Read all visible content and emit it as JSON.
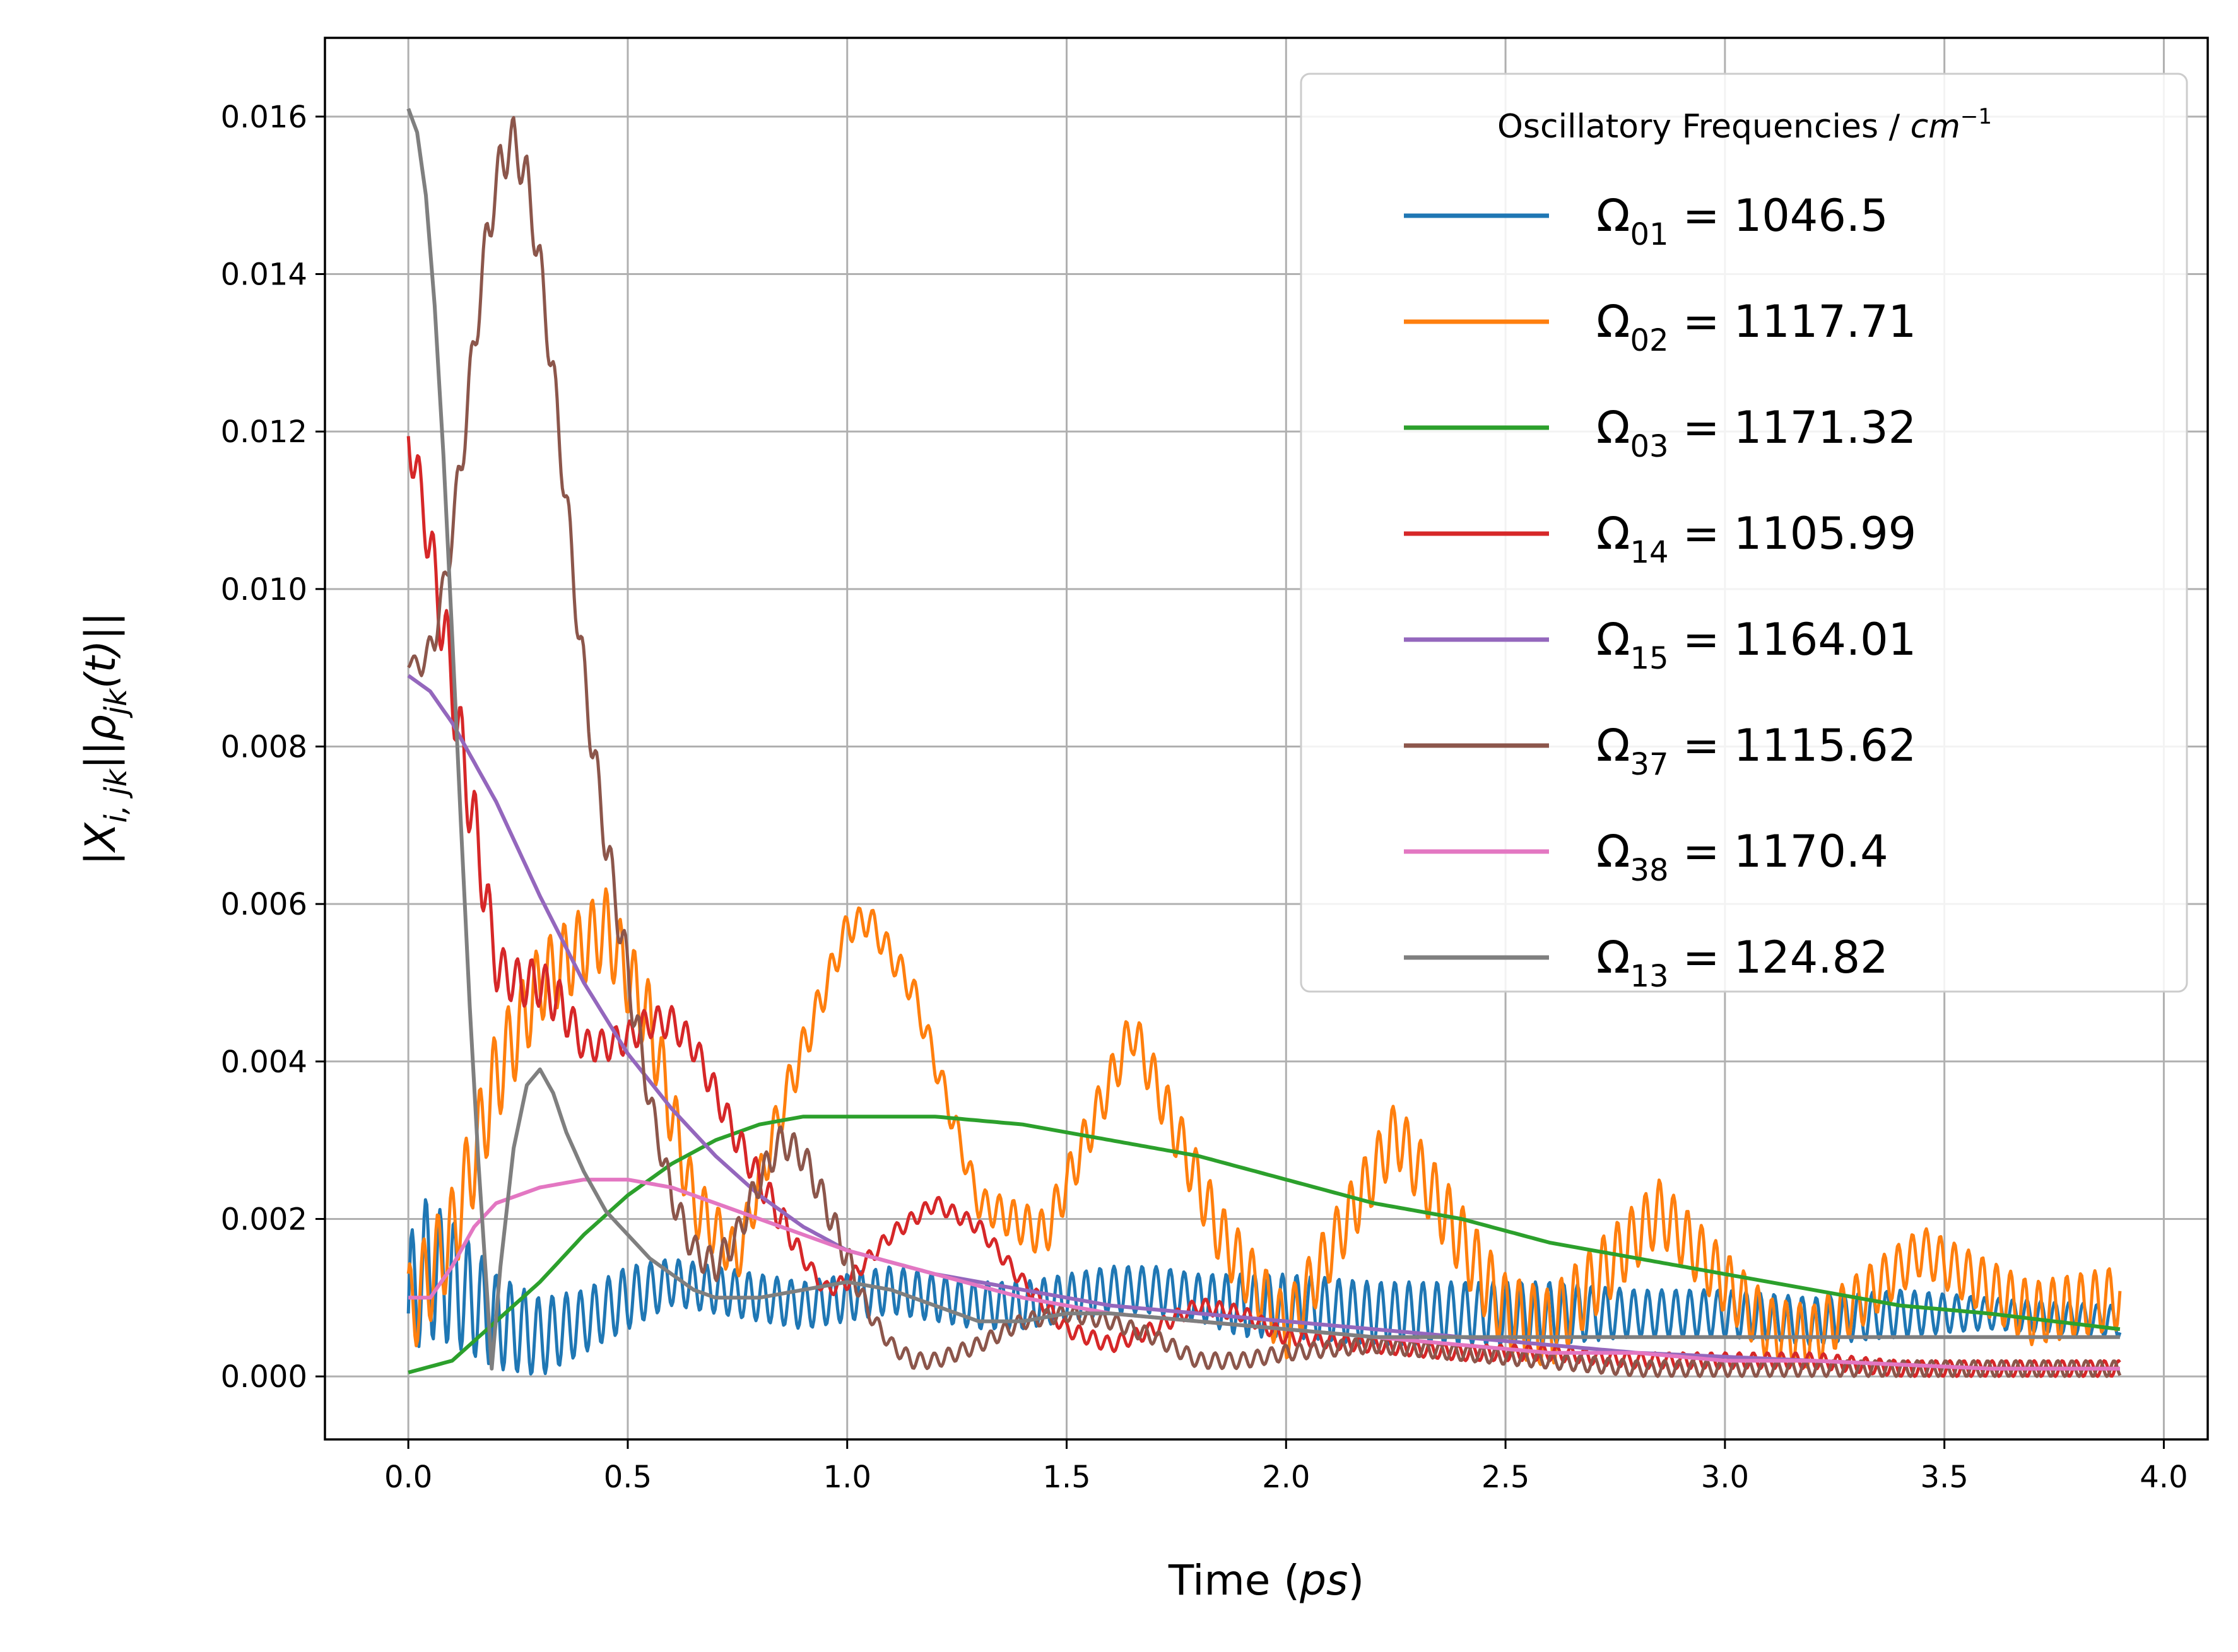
{
  "chart_data": {
    "type": "line",
    "title": "",
    "xlabel": "Time",
    "xlabel_unit": "ps",
    "ylabel": "|X_{i,jk}||ρ_{jk}(t)||",
    "xlim": [
      -0.19,
      4.1
    ],
    "ylim": [
      -0.0008,
      0.017
    ],
    "xticks": [
      0.0,
      0.5,
      1.0,
      1.5,
      2.0,
      2.5,
      3.0,
      3.5,
      4.0
    ],
    "xtick_labels": [
      "0.0",
      "0.5",
      "1.0",
      "1.5",
      "2.0",
      "2.5",
      "3.0",
      "3.5",
      "4.0"
    ],
    "yticks": [
      0.0,
      0.002,
      0.004,
      0.006,
      0.008,
      0.01,
      0.012,
      0.014,
      0.016
    ],
    "ytick_labels": [
      "0.000",
      "0.002",
      "0.004",
      "0.006",
      "0.008",
      "0.010",
      "0.012",
      "0.014",
      "0.016"
    ],
    "grid": true,
    "legend": {
      "placement": "top-right",
      "title": "Oscillatory Frequencies / cm^-1",
      "title_text": "Oscillatory Frequencies / ",
      "title_unit": "cm",
      "title_exponent": "−1"
    },
    "series": [
      {
        "name": "Ω01 = 1046.5",
        "symbol": "Ω",
        "subscript": "01",
        "value_text": "= 1046.5",
        "color": "#1f77b4",
        "x": [
          0.0,
          0.03,
          0.1,
          0.2,
          0.3,
          0.4,
          0.5,
          0.6,
          0.7,
          0.8,
          0.9,
          1.0,
          1.1,
          1.2,
          1.3,
          1.4,
          1.5,
          1.6,
          1.7,
          1.8,
          1.9,
          2.0,
          2.2,
          2.4,
          2.6,
          2.8,
          3.0,
          3.2,
          3.4,
          3.6,
          3.9
        ],
        "y": [
          0.0008,
          0.0014,
          0.0012,
          0.0007,
          0.0005,
          0.0007,
          0.001,
          0.0012,
          0.0011,
          0.001,
          0.0009,
          0.001,
          0.0011,
          0.001,
          0.0009,
          0.0009,
          0.001,
          0.0011,
          0.0011,
          0.001,
          0.0009,
          0.0009,
          0.0008,
          0.0008,
          0.0008,
          0.0008,
          0.0008,
          0.0007,
          0.0008,
          0.0008,
          0.0007
        ],
        "ripple": [
          0.0009,
          0.0009,
          0.0008,
          0.0006,
          0.0005,
          0.0004,
          0.0004,
          0.0003,
          0.0003,
          0.0003,
          0.0003,
          0.0003,
          0.0003,
          0.0003,
          0.0003,
          0.0003,
          0.0003,
          0.0003,
          0.0003,
          0.0003,
          0.0004,
          0.0004,
          0.0004,
          0.0004,
          0.0004,
          0.0003,
          0.0003,
          0.0003,
          0.0003,
          0.0002,
          0.0002
        ]
      },
      {
        "name": "Ω02 = 1117.71",
        "symbol": "Ω",
        "subscript": "02",
        "value_text": "= 1117.71",
        "color": "#ff7f0e",
        "x": [
          0.0,
          0.1,
          0.2,
          0.3,
          0.45,
          0.55,
          0.65,
          0.75,
          0.85,
          1.0,
          1.05,
          1.15,
          1.3,
          1.45,
          1.65,
          1.85,
          2.0,
          2.25,
          2.5,
          2.6,
          2.85,
          3.1,
          3.2,
          3.45,
          3.7,
          3.9
        ],
        "y": [
          0.0008,
          0.0018,
          0.0038,
          0.005,
          0.0057,
          0.0045,
          0.0022,
          0.0015,
          0.0034,
          0.0057,
          0.0058,
          0.0049,
          0.0022,
          0.0018,
          0.0044,
          0.0018,
          0.0006,
          0.0031,
          0.0008,
          0.0006,
          0.0021,
          0.0006,
          0.0005,
          0.0016,
          0.0008,
          0.001
        ],
        "ripple": [
          0.0006,
          0.0006,
          0.0006,
          0.0005,
          0.0005,
          0.0005,
          0.0004,
          0.0003,
          0.0003,
          0.0002,
          0.0002,
          0.0002,
          0.0002,
          0.0003,
          0.0003,
          0.0004,
          0.0004,
          0.0004,
          0.0005,
          0.0005,
          0.0004,
          0.0004,
          0.0004,
          0.0003,
          0.0004,
          0.0004
        ]
      },
      {
        "name": "Ω03 = 1171.32",
        "symbol": "Ω",
        "subscript": "03",
        "value_text": "= 1171.32",
        "color": "#2ca02c",
        "x": [
          0.0,
          0.1,
          0.2,
          0.3,
          0.4,
          0.5,
          0.6,
          0.7,
          0.8,
          0.9,
          1.0,
          1.1,
          1.2,
          1.4,
          1.6,
          1.8,
          2.0,
          2.2,
          2.4,
          2.6,
          2.8,
          3.0,
          3.2,
          3.4,
          3.6,
          3.9
        ],
        "y": [
          5e-05,
          0.0002,
          0.0007,
          0.0012,
          0.0018,
          0.0023,
          0.0027,
          0.003,
          0.0032,
          0.0033,
          0.0033,
          0.0033,
          0.0033,
          0.0032,
          0.003,
          0.0028,
          0.0025,
          0.0022,
          0.002,
          0.0017,
          0.0015,
          0.0013,
          0.0011,
          0.0009,
          0.0008,
          0.0006
        ],
        "ripple": []
      },
      {
        "name": "Ω14 = 1105.99",
        "symbol": "Ω",
        "subscript": "14",
        "value_text": "= 1105.99",
        "color": "#d62728",
        "x": [
          0.0,
          0.02,
          0.05,
          0.08,
          0.1,
          0.12,
          0.15,
          0.18,
          0.2,
          0.25,
          0.3,
          0.35,
          0.4,
          0.45,
          0.5,
          0.55,
          0.6,
          0.65,
          0.7,
          0.75,
          0.8,
          0.85,
          0.9,
          0.95,
          1.0,
          1.1,
          1.2,
          1.3,
          1.4,
          1.5,
          1.6,
          1.7,
          1.8,
          1.9,
          2.0,
          2.2,
          2.4,
          2.6,
          2.8,
          3.0,
          3.2,
          3.4,
          3.6,
          3.9
        ],
        "y": [
          0.0119,
          0.0115,
          0.0105,
          0.0095,
          0.0088,
          0.008,
          0.007,
          0.006,
          0.0052,
          0.005,
          0.005,
          0.0047,
          0.0042,
          0.0042,
          0.0043,
          0.0045,
          0.0045,
          0.0042,
          0.0036,
          0.003,
          0.0025,
          0.002,
          0.0015,
          0.0011,
          0.0012,
          0.0018,
          0.0022,
          0.0019,
          0.0012,
          0.0006,
          0.0004,
          0.0006,
          0.0009,
          0.0008,
          0.0005,
          0.0004,
          0.0003,
          0.0003,
          0.0002,
          0.0002,
          0.0002,
          0.0001,
          0.0001,
          0.0001
        ],
        "ripple": [
          0.0003,
          0.0003,
          0.0004,
          0.0005,
          0.0005,
          0.0005,
          0.0005,
          0.0004,
          0.0003,
          0.0003,
          0.0003,
          0.0003,
          0.0002,
          0.0002,
          0.0002,
          0.0002,
          0.0002,
          0.0002,
          0.0002,
          0.0002,
          0.0002,
          0.0002,
          0.0001,
          0.0001,
          0.0001,
          0.0001,
          0.0001,
          0.0001,
          0.0001,
          0.0001,
          0.0001,
          0.0001,
          0.0001,
          0.0001,
          0.0001,
          0.0001,
          0.0001,
          0.0001,
          0.0001,
          0.0001,
          0.0001,
          0.0001,
          0.0001,
          0.0001
        ]
      },
      {
        "name": "Ω15 = 1164.01",
        "symbol": "Ω",
        "subscript": "15",
        "value_text": "= 1164.01",
        "color": "#9467bd",
        "x": [
          0.0,
          0.05,
          0.1,
          0.2,
          0.3,
          0.4,
          0.5,
          0.6,
          0.7,
          0.8,
          0.9,
          1.0,
          1.2,
          1.4,
          1.6,
          1.8,
          2.0,
          2.2,
          2.4,
          2.6,
          2.8,
          3.0,
          3.2,
          3.4,
          3.6,
          3.9
        ],
        "y": [
          0.0089,
          0.0087,
          0.0083,
          0.0073,
          0.0061,
          0.005,
          0.0041,
          0.0034,
          0.0028,
          0.0023,
          0.0019,
          0.0016,
          0.0013,
          0.0011,
          0.0009,
          0.0008,
          0.0007,
          0.0006,
          0.0005,
          0.0004,
          0.0003,
          0.00025,
          0.0002,
          0.00015,
          0.0001,
          0.0001
        ],
        "ripple": []
      },
      {
        "name": "Ω37 = 1115.62",
        "symbol": "Ω",
        "subscript": "37",
        "value_text": "= 1115.62",
        "color": "#8c564b",
        "x": [
          0.0,
          0.03,
          0.06,
          0.09,
          0.12,
          0.15,
          0.18,
          0.21,
          0.24,
          0.27,
          0.3,
          0.33,
          0.36,
          0.39,
          0.42,
          0.45,
          0.48,
          0.51,
          0.55,
          0.6,
          0.65,
          0.7,
          0.75,
          0.8,
          0.85,
          0.9,
          0.95,
          1.0,
          1.05,
          1.1,
          1.15,
          1.2,
          1.25,
          1.3,
          1.4,
          1.5,
          1.6,
          1.7,
          1.8,
          1.9,
          2.0,
          2.2,
          2.4,
          2.6,
          2.8,
          3.0,
          3.2,
          3.4,
          3.6,
          3.9
        ],
        "y": [
          0.0091,
          0.009,
          0.0094,
          0.0103,
          0.0116,
          0.0131,
          0.0145,
          0.0154,
          0.0157,
          0.0152,
          0.0141,
          0.0127,
          0.0111,
          0.0094,
          0.008,
          0.0068,
          0.0058,
          0.0048,
          0.0035,
          0.0023,
          0.0016,
          0.0014,
          0.0018,
          0.0025,
          0.003,
          0.0028,
          0.0022,
          0.0015,
          0.0008,
          0.0004,
          0.0002,
          0.0002,
          0.0003,
          0.0004,
          0.0007,
          0.0008,
          0.0007,
          0.0005,
          0.0002,
          0.0002,
          0.0003,
          0.0004,
          0.0003,
          0.0002,
          0.0001,
          0.0001,
          0.0001,
          0.0001,
          0.0001,
          0.0001
        ],
        "ripple": [
          0.0001,
          0.0001,
          0.0002,
          0.0002,
          0.0003,
          0.0003,
          0.0003,
          0.0003,
          0.0003,
          0.0003,
          0.0003,
          0.0003,
          0.0003,
          0.0003,
          0.0003,
          0.0003,
          0.0003,
          0.0003,
          0.0002,
          0.0002,
          0.0002,
          0.0002,
          0.0002,
          0.0002,
          0.0002,
          0.0002,
          0.0002,
          0.0002,
          0.0001,
          0.0001,
          0.0001,
          0.0001,
          0.0001,
          0.0001,
          0.0001,
          0.0001,
          0.0001,
          0.0001,
          0.0001,
          0.0001,
          0.0001,
          0.0001,
          0.0001,
          0.0001,
          0.0001,
          0.0001,
          0.0001,
          0.0001,
          0.0001,
          0.0001
        ]
      },
      {
        "name": "Ω38 = 1170.4",
        "symbol": "Ω",
        "subscript": "38",
        "value_text": "= 1170.4",
        "color": "#e377c2",
        "x": [
          0.0,
          0.05,
          0.1,
          0.15,
          0.2,
          0.3,
          0.4,
          0.5,
          0.6,
          0.7,
          0.8,
          0.9,
          1.0,
          1.2,
          1.4,
          1.6,
          1.8,
          2.0,
          2.2,
          2.4,
          2.6,
          2.8,
          3.0,
          3.2,
          3.4,
          3.6,
          3.9
        ],
        "y": [
          0.001,
          0.001,
          0.0014,
          0.0019,
          0.0022,
          0.0024,
          0.0025,
          0.0025,
          0.0024,
          0.0022,
          0.002,
          0.0018,
          0.0016,
          0.0013,
          0.001,
          0.0008,
          0.0007,
          0.0006,
          0.0005,
          0.0004,
          0.0003,
          0.0003,
          0.0002,
          0.0002,
          0.00015,
          0.0001,
          0.0001
        ],
        "ripple": []
      },
      {
        "name": "Ω13 = 124.82",
        "symbol": "Ω",
        "subscript": "13",
        "value_text": "= 124.82",
        "color": "#7f7f7f",
        "x": [
          0.0,
          0.02,
          0.04,
          0.06,
          0.08,
          0.1,
          0.12,
          0.14,
          0.16,
          0.18,
          0.19,
          0.21,
          0.24,
          0.27,
          0.3,
          0.33,
          0.36,
          0.4,
          0.45,
          0.5,
          0.55,
          0.6,
          0.65,
          0.7,
          0.8,
          0.9,
          1.0,
          1.1,
          1.2,
          1.3,
          1.4,
          1.5,
          1.6,
          1.8,
          2.0,
          2.2,
          2.4,
          2.6,
          2.8,
          3.0,
          3.2,
          3.4,
          3.6,
          3.9
        ],
        "y": [
          0.0161,
          0.0158,
          0.015,
          0.0136,
          0.0117,
          0.0094,
          0.007,
          0.0047,
          0.0027,
          0.001,
          0.0001,
          0.0014,
          0.0029,
          0.0037,
          0.0039,
          0.0036,
          0.0031,
          0.0026,
          0.0021,
          0.0018,
          0.0015,
          0.0013,
          0.0011,
          0.001,
          0.001,
          0.0011,
          0.0012,
          0.0011,
          0.0009,
          0.0007,
          0.0007,
          0.0008,
          0.0008,
          0.0007,
          0.0006,
          0.0005,
          0.0005,
          0.0005,
          0.0005,
          0.0005,
          0.0005,
          0.0005,
          0.0005,
          0.0005
        ],
        "ripple": []
      }
    ]
  }
}
